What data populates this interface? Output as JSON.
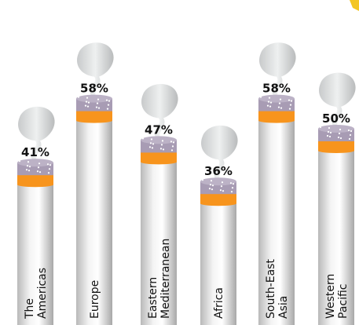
{
  "chart_data": {
    "type": "cigarette",
    "categories": [
      [
        "The",
        "Americas"
      ],
      [
        "Europe"
      ],
      [
        "Eastern",
        "Mediterranean"
      ],
      [
        "Africa"
      ],
      [
        "South-East",
        "Asia"
      ],
      [
        "Western",
        "Pacific"
      ]
    ],
    "values": [
      41,
      58,
      47,
      36,
      58,
      50
    ],
    "value_labels": [
      "41%",
      "58%",
      "47%",
      "36%",
      "58%",
      "50%"
    ],
    "color": "#f7941d"
  }
}
